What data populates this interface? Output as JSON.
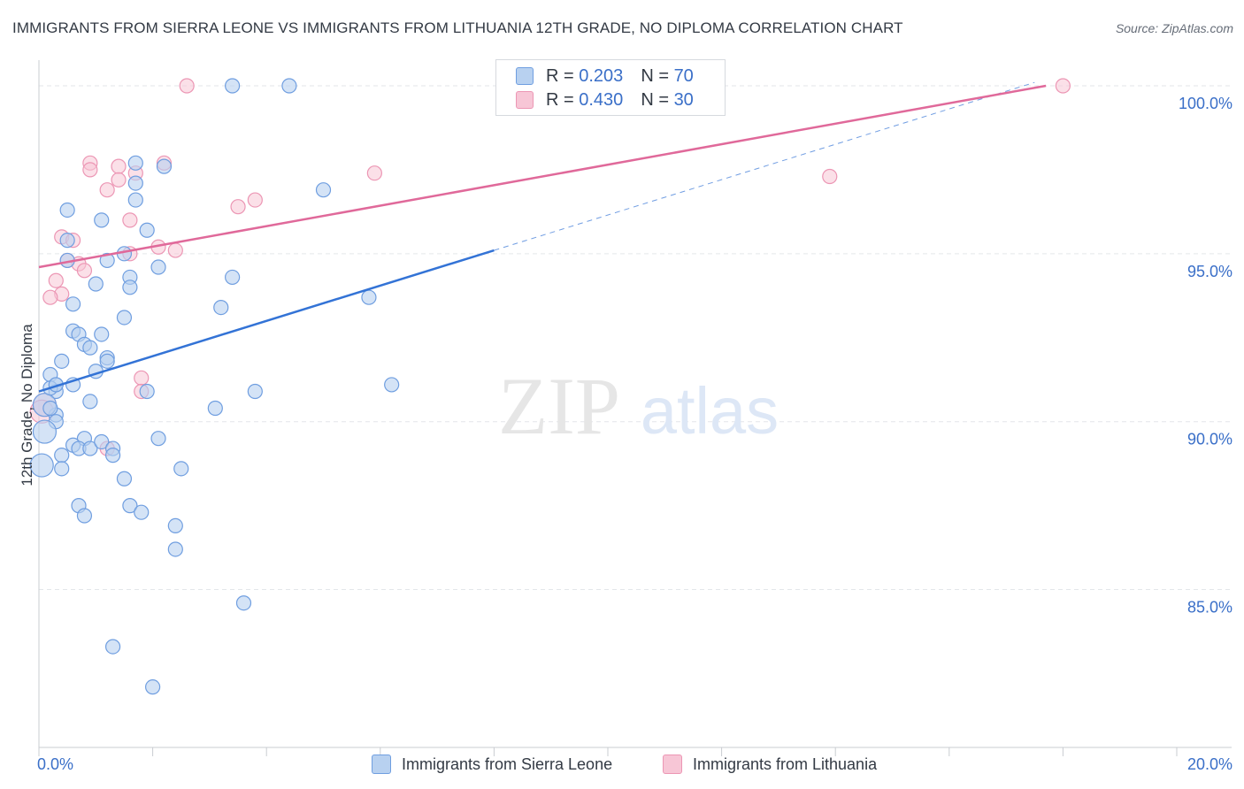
{
  "title": "IMMIGRANTS FROM SIERRA LEONE VS IMMIGRANTS FROM LITHUANIA 12TH GRADE, NO DIPLOMA CORRELATION CHART",
  "source": "Source: ZipAtlas.com",
  "watermark": {
    "zip": "ZIP",
    "atlas": "atlas"
  },
  "colors": {
    "blue_fill": "#b8d1f0",
    "blue_stroke": "#6f9ee0",
    "blue_line": "#3373d6",
    "pink_fill": "#f7c6d6",
    "pink_stroke": "#ec96b4",
    "pink_line": "#e0699a",
    "axis_label": "#3a6fc8",
    "grid": "#e3e6ea"
  },
  "legend": {
    "rows": [
      {
        "r_label": "R =",
        "r_value": "0.203",
        "n_label": "N =",
        "n_value": "70"
      },
      {
        "r_label": "R =",
        "r_value": "0.430",
        "n_label": "N =",
        "n_value": "30"
      }
    ]
  },
  "bottom_legend": {
    "series1": "Immigrants from Sierra Leone",
    "series2": "Immigrants from Lithuania"
  },
  "chart_data": {
    "type": "scatter",
    "title": "IMMIGRANTS FROM SIERRA LEONE VS IMMIGRANTS FROM LITHUANIA 12TH GRADE, NO DIPLOMA CORRELATION CHART",
    "xlabel": "",
    "ylabel": "12th Grade, No Diploma",
    "xlim": [
      0,
      20
    ],
    "ylim": [
      80.3,
      100.5
    ],
    "x_tick_labels": [
      "0.0%",
      "20.0%"
    ],
    "y_ticks": [
      85,
      90,
      95,
      100
    ],
    "y_tick_labels": [
      "85.0%",
      "90.0%",
      "95.0%",
      "100.0%"
    ],
    "series": [
      {
        "name": "Immigrants from Sierra Leone",
        "points": [
          [
            3.4,
            100.0
          ],
          [
            4.4,
            100.0
          ],
          [
            2.2,
            97.6
          ],
          [
            1.7,
            97.7
          ],
          [
            5.0,
            96.9
          ],
          [
            0.5,
            96.3
          ],
          [
            1.7,
            97.1
          ],
          [
            1.7,
            96.6
          ],
          [
            1.1,
            96.0
          ],
          [
            1.9,
            95.7
          ],
          [
            0.5,
            95.4
          ],
          [
            1.5,
            95.0
          ],
          [
            1.2,
            94.8
          ],
          [
            0.5,
            94.8
          ],
          [
            2.1,
            94.6
          ],
          [
            3.4,
            94.3
          ],
          [
            1.6,
            94.3
          ],
          [
            1.0,
            94.1
          ],
          [
            1.6,
            94.0
          ],
          [
            0.6,
            93.5
          ],
          [
            3.2,
            93.4
          ],
          [
            5.8,
            93.7
          ],
          [
            1.5,
            93.1
          ],
          [
            0.6,
            92.7
          ],
          [
            0.7,
            92.6
          ],
          [
            1.1,
            92.6
          ],
          [
            0.8,
            92.3
          ],
          [
            0.9,
            92.2
          ],
          [
            0.4,
            91.8
          ],
          [
            1.2,
            91.9
          ],
          [
            1.2,
            91.8
          ],
          [
            1.0,
            91.5
          ],
          [
            0.2,
            91.4
          ],
          [
            0.3,
            91.1
          ],
          [
            0.6,
            91.1
          ],
          [
            0.3,
            90.9
          ],
          [
            1.9,
            90.9
          ],
          [
            3.8,
            90.9
          ],
          [
            6.2,
            91.1
          ],
          [
            0.9,
            90.6
          ],
          [
            3.1,
            90.4
          ],
          [
            0.3,
            90.2
          ],
          [
            0.3,
            90.0
          ],
          [
            0.1,
            89.7
          ],
          [
            2.1,
            89.5
          ],
          [
            0.8,
            89.5
          ],
          [
            0.6,
            89.3
          ],
          [
            0.7,
            89.2
          ],
          [
            0.9,
            89.2
          ],
          [
            1.1,
            89.4
          ],
          [
            1.3,
            89.2
          ],
          [
            0.4,
            89.0
          ],
          [
            1.3,
            89.0
          ],
          [
            0.4,
            88.6
          ],
          [
            2.5,
            88.6
          ],
          [
            1.5,
            88.3
          ],
          [
            0.7,
            87.5
          ],
          [
            1.6,
            87.5
          ],
          [
            1.8,
            87.3
          ],
          [
            0.8,
            87.2
          ],
          [
            2.4,
            86.9
          ],
          [
            2.4,
            86.2
          ],
          [
            3.6,
            84.6
          ],
          [
            1.3,
            83.3
          ],
          [
            2.0,
            82.1
          ],
          [
            0.05,
            88.7
          ],
          [
            0.1,
            90.5
          ],
          [
            0.2,
            91.0
          ],
          [
            0.3,
            91.1
          ],
          [
            0.2,
            90.4
          ]
        ]
      },
      {
        "name": "Immigrants from Lithuania",
        "points": [
          [
            2.6,
            100.0
          ],
          [
            18.0,
            100.0
          ],
          [
            0.9,
            97.7
          ],
          [
            1.4,
            97.6
          ],
          [
            0.9,
            97.5
          ],
          [
            1.7,
            97.4
          ],
          [
            5.9,
            97.4
          ],
          [
            13.9,
            97.3
          ],
          [
            1.4,
            97.2
          ],
          [
            2.2,
            97.7
          ],
          [
            1.2,
            96.9
          ],
          [
            3.8,
            96.6
          ],
          [
            3.5,
            96.4
          ],
          [
            1.6,
            96.0
          ],
          [
            0.4,
            95.5
          ],
          [
            0.6,
            95.4
          ],
          [
            2.1,
            95.2
          ],
          [
            2.4,
            95.1
          ],
          [
            1.6,
            95.0
          ],
          [
            0.5,
            94.8
          ],
          [
            0.7,
            94.7
          ],
          [
            0.8,
            94.5
          ],
          [
            0.3,
            94.2
          ],
          [
            0.4,
            93.8
          ],
          [
            0.2,
            93.7
          ],
          [
            1.8,
            91.3
          ],
          [
            1.8,
            90.9
          ],
          [
            1.2,
            89.2
          ],
          [
            0.1,
            90.5
          ],
          [
            0.05,
            90.3
          ]
        ]
      }
    ],
    "trend_lines": [
      {
        "series": "Immigrants from Sierra Leone",
        "x": [
          0.0,
          8.0
        ],
        "y": [
          90.9,
          95.1
        ],
        "dashed_extension": {
          "x": [
            8.0,
            17.5
          ],
          "y": [
            95.1,
            100.1
          ]
        }
      },
      {
        "series": "Immigrants from Lithuania",
        "x": [
          0.0,
          17.7
        ],
        "y": [
          94.6,
          100.0
        ]
      }
    ]
  }
}
